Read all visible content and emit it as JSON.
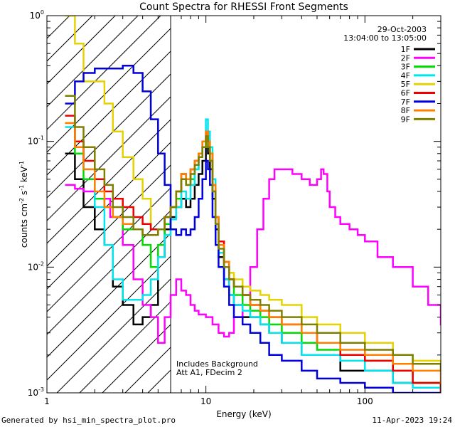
{
  "chart_data": {
    "type": "line",
    "title": "Count Spectra for RHESSI Front Segments",
    "xlabel": "Energy (keV)",
    "ylabel_parts": [
      "counts cm",
      "-2",
      " s",
      "-1",
      " keV",
      "-1"
    ],
    "x_scale": "log",
    "y_scale": "log",
    "xlim": [
      1,
      300
    ],
    "ylim": [
      0.001,
      1.0
    ],
    "x_tick_labels": [
      {
        "value": 1,
        "label": "1"
      },
      {
        "value": 10,
        "label": "10"
      },
      {
        "value": 100,
        "label": "100"
      }
    ],
    "y_tick_labels": [
      {
        "value": 0.001,
        "base": "10",
        "exp": "-3"
      },
      {
        "value": 0.01,
        "base": "10",
        "exp": "-2"
      },
      {
        "value": 0.1,
        "base": "10",
        "exp": "-1"
      },
      {
        "value": 1.0,
        "base": "10",
        "exp": "0"
      }
    ],
    "hatched_region": [
      1,
      6
    ],
    "threshold_line_kev": 6,
    "info": {
      "date": "29-Oct-2003",
      "time_range": "13:04:00 to 13:05:00"
    },
    "annotations": [
      "Includes Background",
      "Att A1, FDecim 2"
    ],
    "series": [
      {
        "name": "1F",
        "color": "#000000",
        "x": [
          1.3,
          1.5,
          1.7,
          2.0,
          2.3,
          2.6,
          3.0,
          3.5,
          4.0,
          4.5,
          5.0,
          5.5,
          6.0,
          6.5,
          7.0,
          7.5,
          8.0,
          8.5,
          9.0,
          9.5,
          10.0,
          10.3,
          10.6,
          11.0,
          11.5,
          12.0,
          13,
          14,
          15,
          17,
          19,
          22,
          25,
          30,
          40,
          50,
          70,
          100,
          150,
          200,
          300
        ],
        "y": [
          0.08,
          0.05,
          0.03,
          0.02,
          0.015,
          0.007,
          0.005,
          0.0035,
          0.004,
          0.005,
          0.012,
          0.02,
          0.025,
          0.03,
          0.035,
          0.03,
          0.035,
          0.045,
          0.055,
          0.07,
          0.09,
          0.08,
          0.06,
          0.035,
          0.02,
          0.012,
          0.008,
          0.006,
          0.005,
          0.004,
          0.004,
          0.0035,
          0.003,
          0.0025,
          0.002,
          0.002,
          0.0015,
          0.0015,
          0.0012,
          0.0012,
          0.001
        ]
      },
      {
        "name": "2F",
        "color": "#ff00ff",
        "x": [
          1.3,
          1.5,
          1.7,
          2.0,
          2.5,
          3.0,
          3.5,
          4.0,
          4.5,
          5.0,
          5.5,
          6.0,
          6.5,
          7.0,
          7.5,
          8.0,
          8.5,
          9.0,
          10,
          11,
          12,
          13,
          14,
          15,
          17,
          19,
          21,
          23,
          25,
          27,
          30,
          35,
          40,
          45,
          50,
          53,
          55,
          58,
          60,
          65,
          70,
          80,
          90,
          100,
          120,
          150,
          200,
          250,
          300
        ],
        "y": [
          0.045,
          0.042,
          0.04,
          0.035,
          0.025,
          0.015,
          0.008,
          0.005,
          0.004,
          0.0025,
          0.004,
          0.006,
          0.008,
          0.0065,
          0.006,
          0.005,
          0.0045,
          0.0042,
          0.004,
          0.0035,
          0.003,
          0.0028,
          0.003,
          0.004,
          0.006,
          0.01,
          0.02,
          0.035,
          0.05,
          0.06,
          0.06,
          0.055,
          0.05,
          0.045,
          0.05,
          0.06,
          0.055,
          0.04,
          0.03,
          0.025,
          0.022,
          0.02,
          0.018,
          0.016,
          0.012,
          0.01,
          0.007,
          0.005,
          0.0035
        ]
      },
      {
        "name": "3F",
        "color": "#00dd00",
        "x": [
          1.3,
          1.5,
          1.7,
          2.0,
          2.3,
          2.6,
          3.0,
          3.5,
          4.0,
          4.5,
          5.0,
          5.5,
          6.0,
          6.5,
          7.0,
          7.5,
          8.0,
          8.5,
          9.0,
          9.5,
          10.0,
          10.3,
          10.6,
          11.0,
          11.5,
          12.0,
          13,
          14,
          15,
          17,
          19,
          22,
          25,
          30,
          40,
          50,
          70,
          100,
          150,
          200,
          300
        ],
        "y": [
          0.14,
          0.08,
          0.05,
          0.035,
          0.03,
          0.025,
          0.02,
          0.02,
          0.015,
          0.01,
          0.015,
          0.022,
          0.03,
          0.035,
          0.05,
          0.045,
          0.05,
          0.06,
          0.075,
          0.09,
          0.11,
          0.1,
          0.08,
          0.045,
          0.025,
          0.015,
          0.01,
          0.008,
          0.006,
          0.005,
          0.0045,
          0.004,
          0.0035,
          0.003,
          0.0025,
          0.0022,
          0.002,
          0.0018,
          0.0015,
          0.0012,
          0.001
        ]
      },
      {
        "name": "4F",
        "color": "#00e5ee",
        "x": [
          1.3,
          1.5,
          1.7,
          2.0,
          2.3,
          2.6,
          3.0,
          3.5,
          4.0,
          4.5,
          5.0,
          5.5,
          6.0,
          6.5,
          7.0,
          7.5,
          8.0,
          8.5,
          9.0,
          9.5,
          10.0,
          10.3,
          10.6,
          11.0,
          11.5,
          12.0,
          13,
          14,
          15,
          17,
          19,
          22,
          25,
          30,
          40,
          50,
          70,
          100,
          150,
          200,
          300
        ],
        "y": [
          0.13,
          0.09,
          0.06,
          0.03,
          0.015,
          0.008,
          0.0055,
          0.0055,
          0.006,
          0.008,
          0.012,
          0.018,
          0.024,
          0.03,
          0.04,
          0.035,
          0.045,
          0.06,
          0.08,
          0.1,
          0.15,
          0.12,
          0.09,
          0.05,
          0.025,
          0.013,
          0.008,
          0.006,
          0.005,
          0.0045,
          0.004,
          0.0035,
          0.003,
          0.0025,
          0.002,
          0.002,
          0.0018,
          0.0015,
          0.0012,
          0.0011,
          0.001
        ]
      },
      {
        "name": "5F",
        "color": "#e6d200",
        "x": [
          1.3,
          1.5,
          1.7,
          2.0,
          2.3,
          2.6,
          3.0,
          3.5,
          4.0,
          4.5,
          5.0,
          5.5,
          6.0,
          6.5,
          7.0,
          7.5,
          8.0,
          8.5,
          9.0,
          9.5,
          10.0,
          10.3,
          10.6,
          11.0,
          11.5,
          12.0,
          13,
          14,
          15,
          17,
          19,
          22,
          25,
          30,
          40,
          50,
          70,
          100,
          150,
          200,
          300
        ],
        "y": [
          1.0,
          0.6,
          0.3,
          0.3,
          0.2,
          0.12,
          0.075,
          0.05,
          0.035,
          0.02,
          0.02,
          0.025,
          0.03,
          0.04,
          0.055,
          0.05,
          0.06,
          0.07,
          0.08,
          0.09,
          0.1,
          0.09,
          0.07,
          0.04,
          0.025,
          0.016,
          0.011,
          0.009,
          0.008,
          0.007,
          0.0065,
          0.006,
          0.0055,
          0.005,
          0.004,
          0.0035,
          0.003,
          0.0025,
          0.002,
          0.0018,
          0.0015
        ]
      },
      {
        "name": "6F",
        "color": "#ee0000",
        "x": [
          1.3,
          1.5,
          1.7,
          2.0,
          2.3,
          2.6,
          3.0,
          3.5,
          4.0,
          4.5,
          5.0,
          5.5,
          6.0,
          6.5,
          7.0,
          7.5,
          8.0,
          8.5,
          9.0,
          9.5,
          10.0,
          10.3,
          10.6,
          11.0,
          11.5,
          12.0,
          13,
          14,
          15,
          17,
          19,
          22,
          25,
          30,
          40,
          50,
          70,
          100,
          150,
          200,
          300
        ],
        "y": [
          0.16,
          0.1,
          0.07,
          0.05,
          0.04,
          0.035,
          0.03,
          0.025,
          0.022,
          0.02,
          0.02,
          0.025,
          0.03,
          0.04,
          0.055,
          0.05,
          0.06,
          0.07,
          0.08,
          0.1,
          0.12,
          0.1,
          0.08,
          0.045,
          0.025,
          0.016,
          0.011,
          0.008,
          0.007,
          0.006,
          0.005,
          0.0045,
          0.004,
          0.0035,
          0.003,
          0.0025,
          0.002,
          0.0018,
          0.0015,
          0.0012,
          0.001
        ]
      },
      {
        "name": "7F",
        "color": "#0000dd",
        "x": [
          1.3,
          1.5,
          1.7,
          2.0,
          2.3,
          2.6,
          3.0,
          3.5,
          4.0,
          4.5,
          5.0,
          5.5,
          6.0,
          6.5,
          7.0,
          7.5,
          8.0,
          8.5,
          9.0,
          9.5,
          10.0,
          10.3,
          10.6,
          11.0,
          11.5,
          12.0,
          13,
          14,
          15,
          17,
          19,
          22,
          25,
          30,
          40,
          50,
          70,
          100,
          150,
          200,
          300
        ],
        "y": [
          0.2,
          0.3,
          0.35,
          0.38,
          0.38,
          0.38,
          0.4,
          0.35,
          0.25,
          0.15,
          0.08,
          0.045,
          0.02,
          0.018,
          0.02,
          0.018,
          0.02,
          0.025,
          0.035,
          0.05,
          0.07,
          0.06,
          0.045,
          0.025,
          0.015,
          0.01,
          0.007,
          0.005,
          0.004,
          0.0035,
          0.003,
          0.0025,
          0.002,
          0.0018,
          0.0015,
          0.0013,
          0.0012,
          0.0011,
          0.001,
          0.001,
          0.001
        ]
      },
      {
        "name": "8F",
        "color": "#ff7f00",
        "x": [
          1.3,
          1.5,
          1.7,
          2.0,
          2.3,
          2.6,
          3.0,
          3.5,
          4.0,
          4.5,
          5.0,
          5.5,
          6.0,
          6.5,
          7.0,
          7.5,
          8.0,
          8.5,
          9.0,
          9.5,
          10.0,
          10.3,
          10.6,
          11.0,
          11.5,
          12.0,
          13,
          14,
          15,
          17,
          19,
          22,
          25,
          30,
          40,
          50,
          70,
          100,
          150,
          200,
          300
        ],
        "y": [
          0.14,
          0.09,
          0.06,
          0.04,
          0.03,
          0.025,
          0.022,
          0.02,
          0.018,
          0.018,
          0.02,
          0.025,
          0.03,
          0.04,
          0.055,
          0.05,
          0.06,
          0.07,
          0.08,
          0.1,
          0.12,
          0.1,
          0.08,
          0.045,
          0.025,
          0.015,
          0.011,
          0.008,
          0.007,
          0.006,
          0.005,
          0.0045,
          0.004,
          0.0035,
          0.003,
          0.0025,
          0.0022,
          0.002,
          0.0017,
          0.0015,
          0.0012
        ]
      },
      {
        "name": "9F",
        "color": "#7f7f00",
        "x": [
          1.3,
          1.5,
          1.7,
          2.0,
          2.3,
          2.6,
          3.0,
          3.5,
          4.0,
          4.5,
          5.0,
          5.5,
          6.0,
          6.5,
          7.0,
          7.5,
          8.0,
          8.5,
          9.0,
          9.5,
          10.0,
          10.3,
          10.6,
          11.0,
          11.5,
          12.0,
          13,
          14,
          15,
          17,
          19,
          22,
          25,
          30,
          40,
          50,
          70,
          100,
          150,
          200,
          300
        ],
        "y": [
          0.23,
          0.13,
          0.09,
          0.06,
          0.045,
          0.03,
          0.025,
          0.02,
          0.018,
          0.018,
          0.02,
          0.025,
          0.03,
          0.04,
          0.05,
          0.045,
          0.055,
          0.065,
          0.075,
          0.09,
          0.11,
          0.09,
          0.07,
          0.04,
          0.022,
          0.014,
          0.01,
          0.008,
          0.007,
          0.006,
          0.0055,
          0.005,
          0.0045,
          0.004,
          0.0035,
          0.003,
          0.0025,
          0.0022,
          0.002,
          0.0017,
          0.0015
        ]
      }
    ]
  },
  "footer": {
    "left": "Generated by hsi_min_spectra_plot.pro",
    "right": "11-Apr-2023 19:24"
  }
}
